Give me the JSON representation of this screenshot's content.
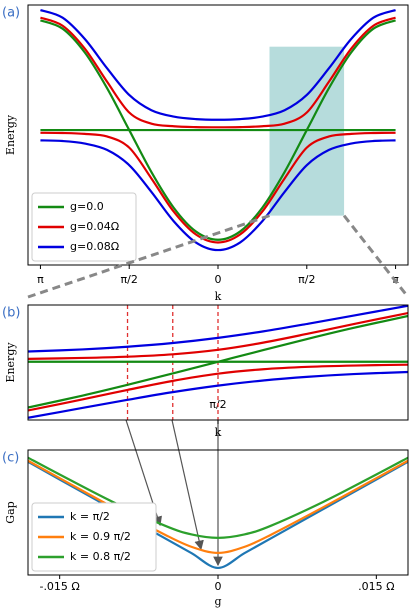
{
  "chart_data": [
    {
      "type": "line",
      "panel_label": "(a)",
      "xlabel": "k",
      "ylabel": "Energy",
      "x": [
        -1,
        -0.875,
        -0.75,
        -0.625,
        -0.5,
        -0.375,
        -0.25,
        -0.125,
        0,
        0.125,
        0.25,
        0.375,
        0.5,
        0.625,
        0.75,
        0.875,
        1
      ],
      "series": [
        {
          "name": "g=0.0",
          "color": "#138a13",
          "branches": [
            [
              1,
              0.924,
              0.707,
              0.383,
              0,
              -0.383,
              -0.707,
              -0.924,
              -1,
              -0.924,
              -0.707,
              -0.383,
              0,
              0.383,
              0.707,
              0.924,
              1
            ],
            [
              0,
              0,
              0,
              0,
              0,
              0,
              0,
              0,
              0,
              0,
              0,
              0,
              0,
              0,
              0,
              0,
              0
            ]
          ]
        },
        {
          "name": "g=0.04Ω",
          "color": "#e00000",
          "branches": [
            [
              1.025,
              0.951,
              0.742,
              0.441,
              0.16,
              0.058,
              0.035,
              0.027,
              0.025,
              0.027,
              0.035,
              0.058,
              0.16,
              0.441,
              0.742,
              0.951,
              1.025
            ],
            [
              -0.025,
              -0.027,
              -0.035,
              -0.058,
              -0.16,
              -0.441,
              -0.742,
              -0.951,
              -1.025,
              -0.951,
              -0.742,
              -0.441,
              -0.16,
              -0.058,
              -0.035,
              -0.027,
              -0.025
            ]
          ]
        },
        {
          "name": "g=0.08Ω",
          "color": "#0000e0",
          "branches": [
            [
              1.094,
              1.024,
              0.83,
              0.564,
              0.32,
              0.181,
              0.123,
              0.1,
              0.094,
              0.1,
              0.123,
              0.181,
              0.32,
              0.564,
              0.83,
              1.024,
              1.094
            ],
            [
              -0.094,
              -0.1,
              -0.123,
              -0.181,
              -0.32,
              -0.564,
              -0.83,
              -1.024,
              -1.094,
              -1.024,
              -0.83,
              -0.564,
              -0.32,
              -0.181,
              -0.123,
              -0.1,
              -0.094
            ]
          ]
        }
      ],
      "xlim": [
        -1.07,
        1.07
      ],
      "ylim": [
        -1.23,
        1.14
      ],
      "xticks": [
        {
          "value": -1,
          "label": "π"
        },
        {
          "value": -0.5,
          "label": "π/2"
        },
        0,
        {
          "value": 0.5,
          "label": "π/2"
        },
        {
          "value": 1,
          "label": "π"
        }
      ],
      "legend": "lower left"
    },
    {
      "type": "line",
      "panel_label": "(b)",
      "xlabel": "k",
      "ylabel": "Energy",
      "x": [
        0.29,
        0.35,
        0.4,
        0.45,
        0.5,
        0.55,
        0.6,
        0.65,
        0.71
      ],
      "series": [
        {
          "color": "#138a13",
          "branches": [
            [
              -0.613,
              -0.454,
              -0.309,
              -0.156,
              0,
              0.156,
              0.309,
              0.454,
              0.613
            ],
            [
              0,
              0,
              0,
              0,
              0,
              0,
              0,
              0,
              0
            ]
          ]
        },
        {
          "color": "#e00000",
          "branches": [
            [
              0.039,
              0.051,
              0.068,
              0.1,
              0.16,
              0.256,
              0.377,
              0.505,
              0.652
            ],
            [
              -0.652,
              -0.505,
              -0.377,
              -0.256,
              -0.16,
              -0.1,
              -0.068,
              -0.051,
              -0.039
            ]
          ]
        },
        {
          "color": "#0000e0",
          "branches": [
            [
              0.137,
              0.165,
              0.201,
              0.251,
              0.32,
              0.407,
              0.51,
              0.619,
              0.75
            ],
            [
              -0.75,
              -0.619,
              -0.51,
              -0.407,
              -0.32,
              -0.251,
              -0.201,
              -0.165,
              -0.137
            ]
          ]
        }
      ],
      "vlines": [
        0.4,
        0.45,
        0.5
      ],
      "vline_color": "#e03030",
      "xlim": [
        0.29,
        0.71
      ],
      "ylim": [
        -0.78,
        0.76
      ],
      "xticks": [
        {
          "value": 0.5,
          "label": "π/2"
        }
      ]
    },
    {
      "type": "line",
      "panel_label": "(c)",
      "xlabel": "g",
      "ylabel": "Gap",
      "x": [
        -0.018,
        -0.015,
        -0.01,
        -0.005,
        -0.0025,
        0,
        0.0025,
        0.005,
        0.01,
        0.015,
        0.018
      ],
      "series": [
        {
          "name": "k = π/2",
          "color": "#1f77b4",
          "values": [
            0.036,
            0.03,
            0.02,
            0.01,
            0.005,
            0,
            0.005,
            0.01,
            0.02,
            0.03,
            0.036
          ]
        },
        {
          "name": "k = 0.9 π/2",
          "color": "#ff7f0e",
          "values": [
            0.03636,
            0.03043,
            0.02064,
            0.01122,
            0.00714,
            0.0051,
            0.00714,
            0.01122,
            0.02064,
            0.03043,
            0.03636
          ]
        },
        {
          "name": "k = 0.8 π/2",
          "color": "#2ca02c",
          "values": [
            0.0374,
            0.03169,
            0.02245,
            0.01428,
            0.01136,
            0.0102,
            0.01136,
            0.01428,
            0.02245,
            0.03169,
            0.0374
          ]
        }
      ],
      "xlim": [
        -0.018,
        0.018
      ],
      "ylim": [
        -0.0024,
        0.04
      ],
      "xticks": [
        {
          "value": -0.015,
          "label": "-.015 Ω"
        },
        0,
        {
          "value": 0.015,
          "label": ".015 Ω"
        }
      ],
      "legend": "lower left"
    }
  ]
}
